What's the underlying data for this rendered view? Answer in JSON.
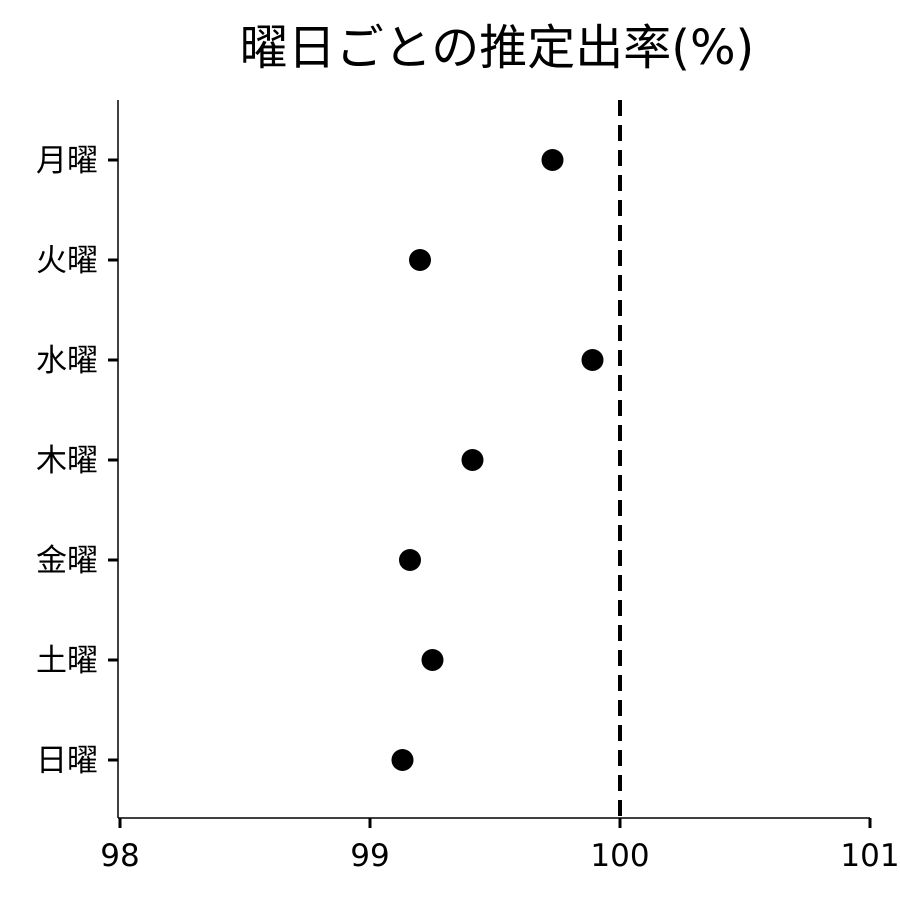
{
  "chart_data": {
    "type": "scatter",
    "title": "曜日ごとの推定出率(%)",
    "xlabel": "",
    "ylabel": "",
    "xlim": [
      98,
      101
    ],
    "x_ticks": [
      "98",
      "99",
      "100",
      "101"
    ],
    "categories": [
      "月曜",
      "火曜",
      "水曜",
      "木曜",
      "金曜",
      "土曜",
      "日曜"
    ],
    "values": [
      99.73,
      99.2,
      99.89,
      99.41,
      99.16,
      99.25,
      99.13
    ],
    "reference_line": {
      "x": 100,
      "style": "dashed"
    },
    "grid": false,
    "legend": "none",
    "colors": {
      "point": "#000000",
      "axis": "#000000",
      "reference": "#000000"
    }
  }
}
